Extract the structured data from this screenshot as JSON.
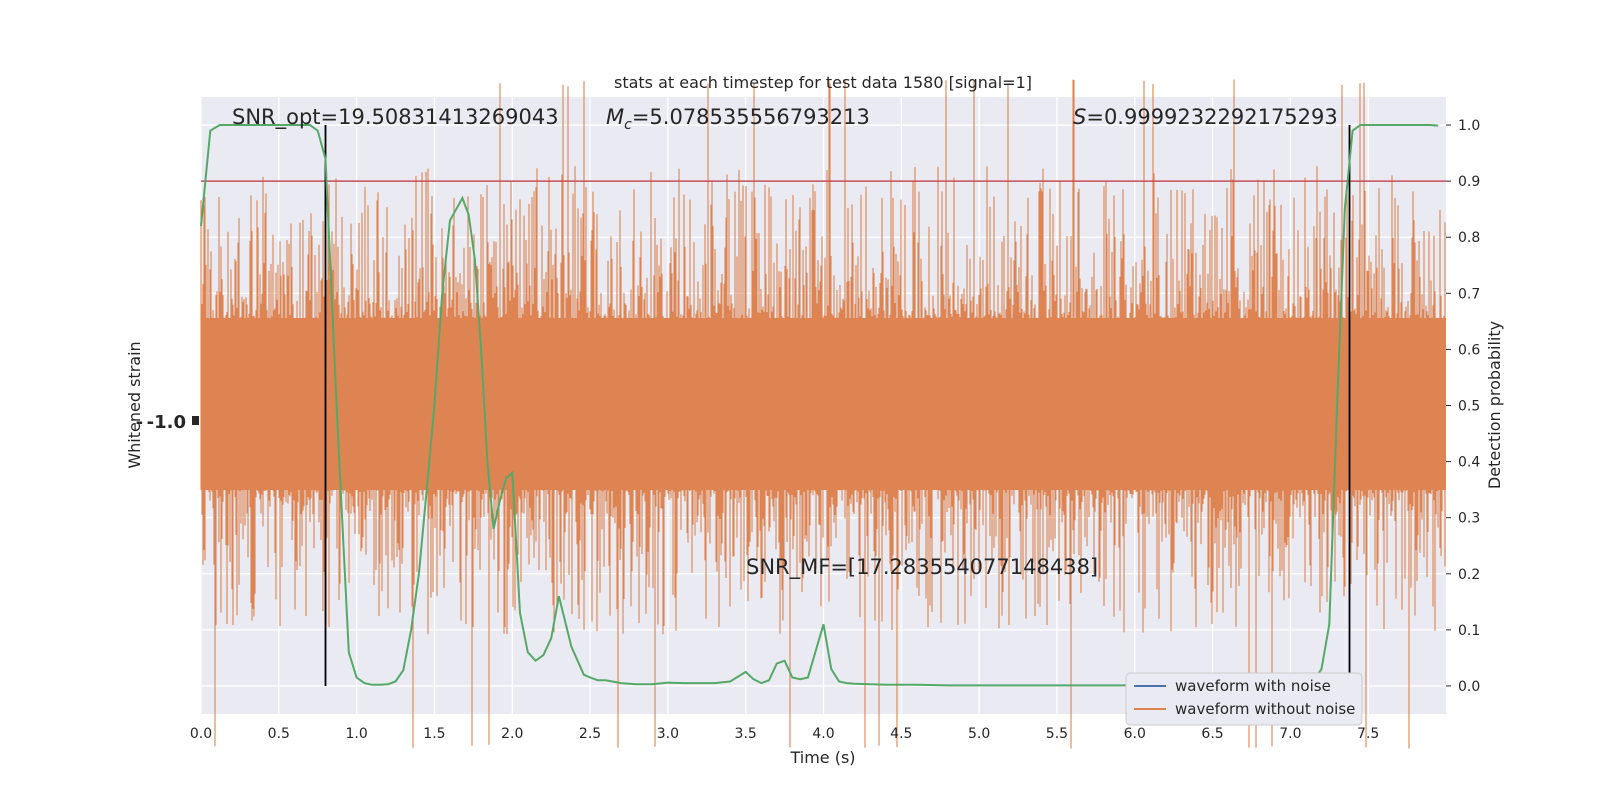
{
  "chart_data": {
    "type": "line",
    "title": "stats at each timestep for test data 1580 [signal=1]",
    "xlabel": "Time (s)",
    "ylabel_left": "Whitened strain",
    "ylabel_right": "Detection probability",
    "xlim": [
      0.0,
      8.0
    ],
    "ylim_right": [
      -0.05,
      1.05
    ],
    "x_ticks": [
      "0.0",
      "0.5",
      "1.0",
      "1.5",
      "2.0",
      "2.5",
      "3.0",
      "3.5",
      "4.0",
      "4.5",
      "5.0",
      "5.5",
      "6.0",
      "6.5",
      "7.0",
      "7.5"
    ],
    "y_ticks_right": [
      "0.0",
      "0.1",
      "0.2",
      "0.3",
      "0.4",
      "0.5",
      "0.6",
      "0.7",
      "0.8",
      "0.9",
      "1.0"
    ],
    "left_tick_cluster": "- -1.0",
    "annotations": {
      "snr_opt": "SNR_opt=19.50831413269043",
      "mc_symbol": "M",
      "mc_sub": "c",
      "mc_value": "=5.078535556793213",
      "s_symbol": "S",
      "s_value": "=0.9999232292175293",
      "snr_mf": "SNR_MF=[17.283554077148438]"
    },
    "threshold": 0.9,
    "vlines_x": [
      0.8,
      7.38
    ],
    "grid": true,
    "legend_placement": "lower-right",
    "series": [
      {
        "name": "waveform with noise",
        "color": "#4c72b0"
      },
      {
        "name": "waveform without noise",
        "color": "#dd8452"
      },
      {
        "name": "",
        "color": "#55a868",
        "x": [
          0.0,
          0.06,
          0.12,
          0.2,
          0.3,
          0.4,
          0.5,
          0.6,
          0.7,
          0.75,
          0.8,
          0.88,
          0.95,
          1.0,
          1.05,
          1.1,
          1.15,
          1.2,
          1.25,
          1.3,
          1.35,
          1.4,
          1.45,
          1.5,
          1.55,
          1.6,
          1.64,
          1.68,
          1.72,
          1.76,
          1.8,
          1.84,
          1.88,
          1.92,
          1.96,
          2.0,
          2.05,
          2.1,
          2.15,
          2.2,
          2.25,
          2.3,
          2.38,
          2.46,
          2.5,
          2.55,
          2.6,
          2.7,
          2.8,
          2.9,
          3.0,
          3.1,
          3.2,
          3.3,
          3.4,
          3.5,
          3.55,
          3.6,
          3.65,
          3.7,
          3.75,
          3.8,
          3.85,
          3.9,
          4.0,
          4.05,
          4.1,
          4.15,
          4.2,
          4.4,
          4.6,
          4.8,
          5.0,
          5.5,
          6.0,
          6.5,
          7.0,
          7.15,
          7.2,
          7.25,
          7.3,
          7.35,
          7.4,
          7.45,
          7.5,
          7.6,
          7.7,
          7.8,
          7.9,
          7.95
        ],
        "y": [
          0.82,
          0.99,
          1.0,
          1.0,
          1.0,
          1.0,
          1.0,
          1.0,
          1.0,
          0.99,
          0.94,
          0.45,
          0.06,
          0.015,
          0.005,
          0.002,
          0.002,
          0.003,
          0.008,
          0.028,
          0.1,
          0.2,
          0.35,
          0.5,
          0.7,
          0.83,
          0.85,
          0.87,
          0.84,
          0.76,
          0.6,
          0.4,
          0.28,
          0.33,
          0.37,
          0.38,
          0.13,
          0.06,
          0.045,
          0.055,
          0.085,
          0.16,
          0.07,
          0.02,
          0.015,
          0.01,
          0.01,
          0.005,
          0.003,
          0.003,
          0.006,
          0.005,
          0.005,
          0.005,
          0.008,
          0.025,
          0.012,
          0.005,
          0.01,
          0.04,
          0.045,
          0.015,
          0.012,
          0.015,
          0.11,
          0.03,
          0.008,
          0.005,
          0.004,
          0.002,
          0.002,
          0.001,
          0.001,
          0.001,
          0.001,
          0.001,
          0.001,
          0.01,
          0.03,
          0.11,
          0.5,
          0.85,
          0.99,
          1.0,
          1.0,
          1.0,
          1.0,
          1.0,
          1.0,
          0.999
        ]
      }
    ]
  }
}
